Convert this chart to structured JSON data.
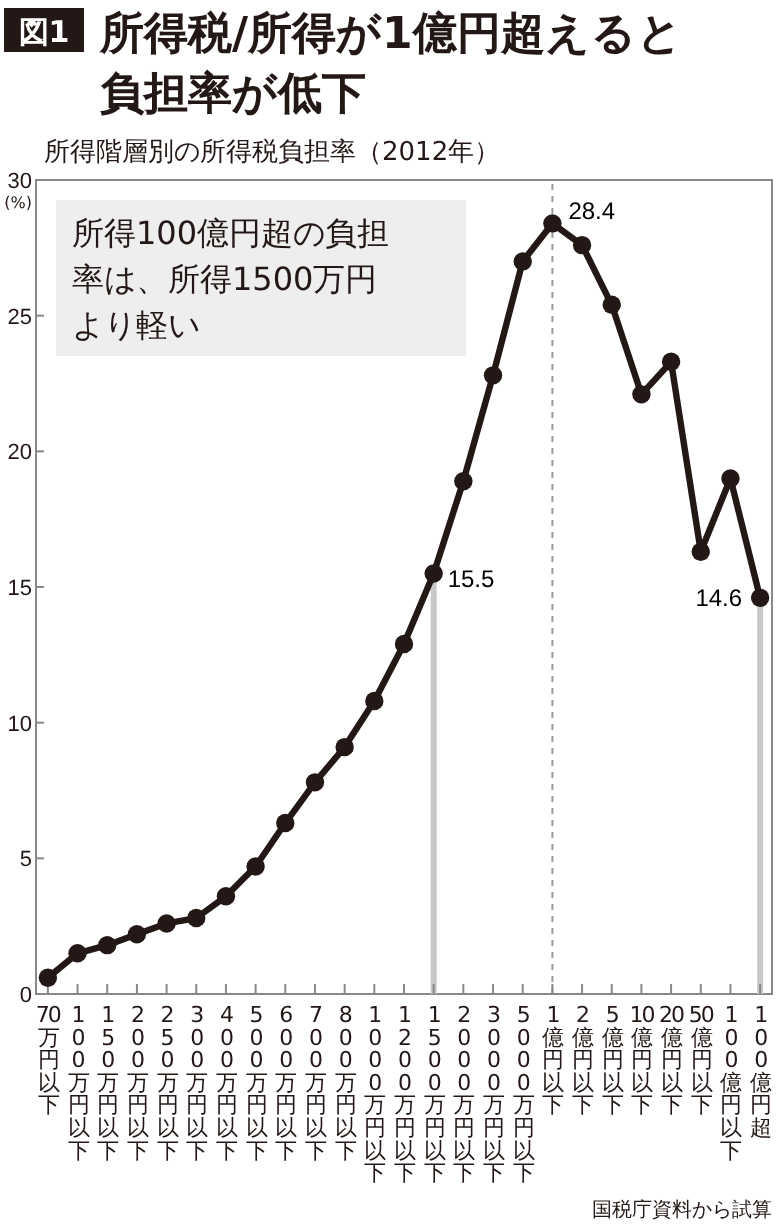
{
  "chart_data": {
    "type": "line",
    "title": "所得税/所得が1億円超えると負担率が低下",
    "subtitle": "所得階層別の所得税負担率（2012年）",
    "ylabel": "(%)",
    "annotations": [
      "図1",
      "所得100億円超の負担率は、所得1500万円より軽い",
      "国税庁資料から試算"
    ],
    "categories": [
      "70万円以下",
      "100万円以下",
      "150万円以下",
      "200万円以下",
      "250万円以下",
      "300万円以下",
      "400万円以下",
      "500万円以下",
      "600万円以下",
      "700万円以下",
      "800万円以下",
      "1000万円以下",
      "1200万円以下",
      "1500万円以下",
      "2000万円以下",
      "3000万円以下",
      "5000万円以下",
      "1億円以下",
      "2億円以下",
      "5億円以下",
      "10億円以下",
      "20億円以下",
      "50億円以下",
      "100億円以下",
      "100億円超"
    ],
    "series": [
      {
        "color": "#231815",
        "values": [
          0.6,
          1.5,
          1.8,
          2.2,
          2.6,
          2.8,
          3.6,
          4.7,
          6.3,
          7.8,
          9.1,
          10.8,
          12.9,
          15.5,
          18.9,
          22.8,
          27.0,
          28.4,
          27.6,
          25.4,
          22.1,
          23.3,
          16.3,
          19.0,
          14.6
        ],
        "value_labels": [
          null,
          null,
          null,
          null,
          null,
          null,
          null,
          null,
          null,
          null,
          null,
          null,
          null,
          "15.5",
          null,
          null,
          null,
          "28.4",
          null,
          null,
          null,
          null,
          null,
          null,
          "14.6"
        ]
      }
    ],
    "ylim": [
      0,
      30
    ],
    "yticks": [
      0,
      5,
      10,
      15,
      20,
      25,
      30
    ],
    "grid": false,
    "marker": "circle",
    "line_style": "solid",
    "ref_lines": [
      {
        "axis": "x",
        "value": "1500万円以下",
        "color": "#c8c8c8",
        "line_style": "solid"
      },
      {
        "axis": "x",
        "value": "1億円以下",
        "color": "#999999",
        "line_style": "dashed"
      },
      {
        "axis": "x",
        "value": "100億円超",
        "color": "#c8c8c8",
        "line_style": "solid"
      }
    ]
  }
}
